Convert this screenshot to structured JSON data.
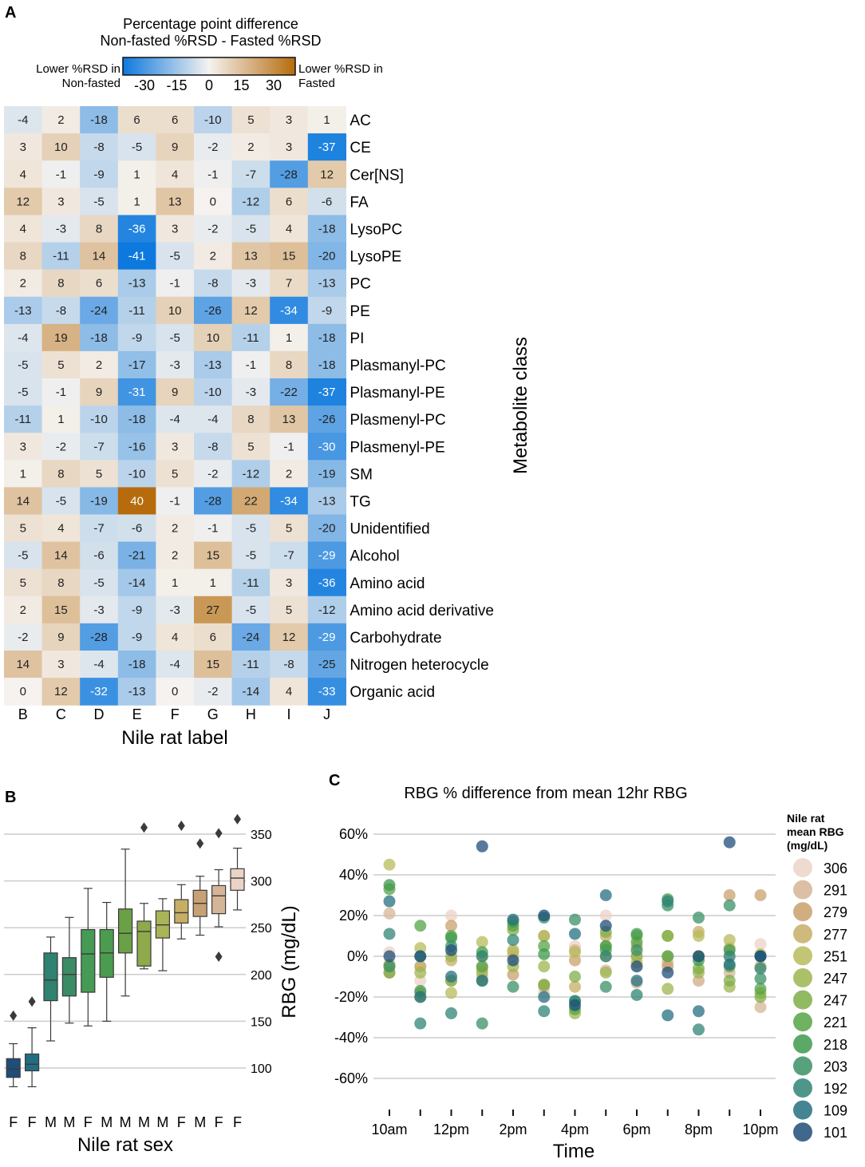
{
  "panel_labels": {
    "a": "A",
    "b": "B",
    "c": "C"
  },
  "chart_data": [
    {
      "type": "heatmap",
      "title": "Percentage point difference",
      "subtitle": "Non-fasted %RSD - Fasted %RSD",
      "colorbar": {
        "ticks": [
          -30,
          -15,
          0,
          15,
          30
        ],
        "range": [
          -40,
          40
        ],
        "left_label": [
          "Lower %RSD in",
          "Non-fasted"
        ],
        "right_label": [
          "Lower %RSD in",
          "Fasted"
        ],
        "colors": {
          "low": "#0d79de",
          "mid": "#f5f2ef",
          "high": "#b66c0d"
        }
      },
      "xlabel": "Nile rat label",
      "ylabel": "Metabolite class",
      "columns": [
        "B",
        "C",
        "D",
        "E",
        "F",
        "G",
        "H",
        "I",
        "J"
      ],
      "rows": [
        "AC",
        "CE",
        "Cer[NS]",
        "FA",
        "LysoPC",
        "LysoPE",
        "PC",
        "PE",
        "PI",
        "Plasmanyl-PC",
        "Plasmanyl-PE",
        "Plasmenyl-PC",
        "Plasmenyl-PE",
        "SM",
        "TG",
        "Unidentified",
        "Alcohol",
        "Amino acid",
        "Amino acid derivative",
        "Carbohydrate",
        "Nitrogen heterocycle",
        "Organic acid"
      ],
      "values": [
        [
          -4,
          2,
          -18,
          6,
          6,
          -10,
          5,
          3,
          1
        ],
        [
          3,
          10,
          -8,
          -5,
          9,
          -2,
          2,
          3,
          -37
        ],
        [
          4,
          -1,
          -9,
          1,
          4,
          -1,
          -7,
          -28,
          12
        ],
        [
          12,
          3,
          -5,
          1,
          13,
          0,
          -12,
          6,
          -6
        ],
        [
          4,
          -3,
          8,
          -36,
          3,
          -2,
          -5,
          4,
          -18
        ],
        [
          8,
          -11,
          14,
          -41,
          -5,
          2,
          13,
          15,
          -20
        ],
        [
          2,
          8,
          6,
          -13,
          -1,
          -8,
          -3,
          7,
          -13
        ],
        [
          -13,
          -8,
          -24,
          -11,
          10,
          -26,
          12,
          -34,
          -9
        ],
        [
          -4,
          19,
          -18,
          -9,
          -5,
          10,
          -11,
          1,
          -18
        ],
        [
          -5,
          5,
          2,
          -17,
          -3,
          -13,
          -1,
          8,
          -18
        ],
        [
          -5,
          -1,
          9,
          -31,
          9,
          -10,
          -3,
          -22,
          -37
        ],
        [
          -11,
          1,
          -10,
          -18,
          -4,
          -4,
          8,
          13,
          -26
        ],
        [
          3,
          -2,
          -7,
          -16,
          3,
          -8,
          5,
          -1,
          -30
        ],
        [
          1,
          8,
          5,
          -10,
          5,
          -2,
          -12,
          2,
          -19
        ],
        [
          14,
          -5,
          -19,
          40,
          -1,
          -28,
          22,
          -34,
          -13
        ],
        [
          5,
          4,
          -7,
          -6,
          2,
          -1,
          -5,
          5,
          -20
        ],
        [
          -5,
          14,
          -6,
          -21,
          2,
          15,
          -5,
          -7,
          -29
        ],
        [
          5,
          8,
          -5,
          -14,
          1,
          1,
          -11,
          3,
          -36
        ],
        [
          2,
          15,
          -3,
          -9,
          -3,
          27,
          -5,
          5,
          -12
        ],
        [
          -2,
          9,
          -28,
          -9,
          4,
          6,
          -24,
          12,
          -29
        ],
        [
          14,
          3,
          -4,
          -18,
          -4,
          15,
          -11,
          -8,
          -25
        ],
        [
          0,
          12,
          -32,
          -13,
          0,
          -2,
          -14,
          4,
          -33
        ]
      ]
    },
    {
      "type": "box",
      "xlabel": "Nile rat sex",
      "ylabel": "RBG (mg/dL)",
      "categories": [
        "F",
        "F",
        "M",
        "M",
        "F",
        "M",
        "M",
        "M",
        "M",
        "F",
        "M",
        "F",
        "F"
      ],
      "ylim": [
        75,
        380
      ],
      "yticks": [
        100,
        150,
        200,
        250,
        300,
        350
      ],
      "grid": true,
      "boxes": [
        {
          "q1": 90,
          "median": 99,
          "q3": 110,
          "whislo": 80,
          "whishi": 126,
          "fliers": [
            156
          ],
          "color": "#1e4e79"
        },
        {
          "q1": 97,
          "median": 104,
          "q3": 115,
          "whislo": 80,
          "whishi": 143,
          "fliers": [
            171
          ],
          "color": "#236d82"
        },
        {
          "q1": 172,
          "median": 194,
          "q3": 223,
          "whislo": 129,
          "whishi": 240,
          "fliers": [],
          "color": "#2f8170"
        },
        {
          "q1": 177,
          "median": 200,
          "q3": 218,
          "whislo": 148,
          "whishi": 261,
          "fliers": [],
          "color": "#3b8b65"
        },
        {
          "q1": 181,
          "median": 222,
          "q3": 248,
          "whislo": 145,
          "whishi": 292,
          "fliers": [],
          "color": "#459a55"
        },
        {
          "q1": 197,
          "median": 223,
          "q3": 248,
          "whislo": 150,
          "whishi": 277,
          "fliers": [],
          "color": "#4b9c4e"
        },
        {
          "q1": 223,
          "median": 244,
          "q3": 270,
          "whislo": 177,
          "whishi": 334,
          "fliers": [],
          "color": "#6ba146"
        },
        {
          "q1": 209,
          "median": 246,
          "q3": 257,
          "whislo": 206,
          "whishi": 276,
          "fliers": [
            357
          ],
          "color": "#8eaa4b"
        },
        {
          "q1": 239,
          "median": 253,
          "q3": 268,
          "whislo": 204,
          "whishi": 281,
          "fliers": [],
          "color": "#a9b457"
        },
        {
          "q1": 255,
          "median": 266,
          "q3": 280,
          "whislo": 238,
          "whishi": 296,
          "fliers": [
            359
          ],
          "color": "#c6ae65"
        },
        {
          "q1": 262,
          "median": 276,
          "q3": 290,
          "whislo": 242,
          "whishi": 305,
          "fliers": [
            340
          ],
          "color": "#c7a175"
        },
        {
          "q1": 265,
          "median": 284,
          "q3": 295,
          "whislo": 251,
          "whishi": 312,
          "fliers": [
            351,
            219
          ],
          "color": "#d5b597"
        },
        {
          "q1": 290,
          "median": 303,
          "q3": 313,
          "whislo": 269,
          "whishi": 335,
          "fliers": [
            366
          ],
          "color": "#ebd3c6"
        }
      ]
    },
    {
      "type": "scatter",
      "title": "RBG % difference from mean 12hr RBG",
      "xlabel": "Time",
      "x_tick_labels": [
        "10am",
        "12pm",
        "2pm",
        "4pm",
        "6pm",
        "8pm",
        "10pm"
      ],
      "x_points": [
        "10am",
        "11am",
        "12pm",
        "1pm",
        "2pm",
        "3pm",
        "4pm",
        "5pm",
        "6pm",
        "7pm",
        "8pm",
        "9pm",
        "10pm"
      ],
      "ylim": [
        -0.7,
        0.68
      ],
      "yticks": [
        0.6,
        0.4,
        0.2,
        0.0,
        -0.2,
        -0.4,
        -0.6
      ],
      "ytick_labels": [
        "60%",
        "40%",
        "20%",
        "0%",
        "-20%",
        "-40%",
        "-60%"
      ],
      "grid": true,
      "legend": {
        "title": [
          "Nile rat",
          "mean RBG",
          "(mg/dL)"
        ],
        "placement": "right",
        "entries": [
          {
            "label": "306",
            "color": "#ebd3c6"
          },
          {
            "label": "291",
            "color": "#d5b597"
          },
          {
            "label": "279",
            "color": "#c9a06c"
          },
          {
            "label": "277",
            "color": "#c6ae65"
          },
          {
            "label": "251",
            "color": "#b7bb5a"
          },
          {
            "label": "247",
            "color": "#9cb64f"
          },
          {
            "label": "247",
            "color": "#7fae48"
          },
          {
            "label": "221",
            "color": "#55a447"
          },
          {
            "label": "218",
            "color": "#3f9a4c"
          },
          {
            "label": "203",
            "color": "#3a9065"
          },
          {
            "label": "192",
            "color": "#2f8476"
          },
          {
            "label": "109",
            "color": "#256f80"
          },
          {
            "label": "101",
            "color": "#1e4e79"
          }
        ]
      },
      "series": [
        {
          "name": "306",
          "values": [
            0.02,
            -0.12,
            0.2,
            -0.05,
            0.0,
            -0.18,
            0.05,
            0.2,
            -0.05,
            0.0,
            -0.12,
            0.0,
            0.06
          ]
        },
        {
          "name": "291",
          "values": [
            0.21,
            -0.05,
            -0.12,
            -0.1,
            0.0,
            -0.15,
            0.03,
            -0.07,
            -0.13,
            -0.03,
            -0.12,
            -0.08,
            -0.25
          ]
        },
        {
          "name": "279",
          "values": [
            -0.08,
            -0.18,
            0.15,
            -0.06,
            -0.09,
            0.1,
            -0.02,
            0.0,
            0.0,
            -0.05,
            0.0,
            0.3,
            0.3
          ]
        },
        {
          "name": "277",
          "values": [
            -0.04,
            -0.05,
            -0.02,
            0.0,
            0.03,
            -0.14,
            -0.15,
            0.1,
            0.05,
            0.0,
            0.12,
            0.04,
            -0.05
          ]
        },
        {
          "name": "251",
          "values": [
            0.45,
            0.04,
            -0.18,
            0.07,
            0.02,
            0.1,
            0.02,
            0.05,
            -0.03,
            0.1,
            0.1,
            0.08,
            0.01
          ]
        },
        {
          "name": "247",
          "values": [
            -0.05,
            -0.08,
            0.0,
            -0.08,
            -0.05,
            -0.05,
            -0.28,
            -0.08,
            0.0,
            -0.16,
            -0.08,
            -0.15,
            -0.18
          ]
        },
        {
          "name": "247",
          "values": [
            -0.08,
            -0.2,
            -0.12,
            -0.12,
            0.13,
            -0.14,
            -0.1,
            0.12,
            0.1,
            0.1,
            -0.06,
            -0.12,
            -0.2
          ]
        },
        {
          "name": "221",
          "values": [
            0.33,
            0.15,
            0.1,
            -0.05,
            0.15,
            0.05,
            -0.26,
            0.03,
            0.07,
            0.0,
            0.0,
            -0.05,
            -0.16
          ]
        },
        {
          "name": "218",
          "values": [
            0.35,
            -0.17,
            0.09,
            0.02,
            0.17,
            0.01,
            -0.22,
            0.05,
            0.11,
            0.28,
            -0.02,
            0.03,
            0.0
          ]
        },
        {
          "name": "203",
          "values": [
            -0.05,
            0.0,
            0.05,
            -0.33,
            -0.15,
            0.19,
            0.18,
            -0.15,
            0.03,
            0.25,
            0.19,
            0.25,
            -0.11
          ]
        },
        {
          "name": "192",
          "values": [
            0.11,
            -0.33,
            -0.28,
            0.0,
            0.08,
            -0.27,
            -0.22,
            0.0,
            -0.19,
            0.27,
            -0.36,
            0.0,
            -0.06
          ]
        },
        {
          "name": "109",
          "values": [
            0.27,
            -0.2,
            -0.1,
            -0.12,
            0.18,
            -0.2,
            0.11,
            0.3,
            -0.12,
            -0.29,
            -0.27,
            -0.04,
            0.0
          ]
        },
        {
          "name": "101",
          "values": [
            0.0,
            0.0,
            0.03,
            0.54,
            -0.02,
            0.2,
            -0.24,
            0.15,
            -0.05,
            -0.08,
            0.0,
            0.56,
            0.0
          ]
        }
      ]
    }
  ]
}
